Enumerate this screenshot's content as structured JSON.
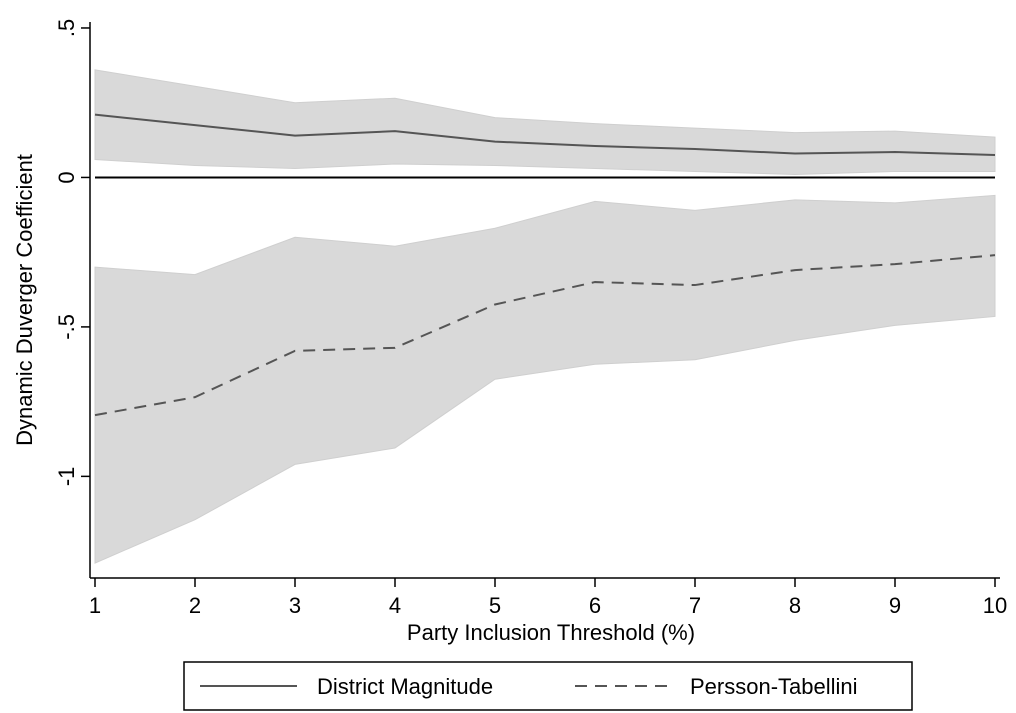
{
  "chart_data": {
    "type": "line",
    "title": "",
    "xlabel": "Party Inclusion Threshold (%)",
    "ylabel": "Dynamic Duverger Coefficient",
    "x": [
      1,
      2,
      3,
      4,
      5,
      6,
      7,
      8,
      9,
      10
    ],
    "x_ticks": [
      "1",
      "2",
      "3",
      "4",
      "5",
      "6",
      "7",
      "8",
      "9",
      "10"
    ],
    "y_ticks": [
      {
        "value": 0.5,
        "label": ".5"
      },
      {
        "value": 0,
        "label": "0"
      },
      {
        "value": -0.5,
        "label": "-.5"
      },
      {
        "value": -1,
        "label": "-1"
      }
    ],
    "xlim": [
      0.95,
      10.05
    ],
    "ylim": [
      -1.34,
      0.52
    ],
    "reference_line": 0,
    "grid": false,
    "legend_position": "bottom",
    "band_color": "#d9d9d9",
    "line_color": "#555555",
    "series": [
      {
        "name": "District Magnitude",
        "style": "solid",
        "values": [
          0.21,
          0.175,
          0.14,
          0.155,
          0.12,
          0.105,
          0.095,
          0.08,
          0.085,
          0.075
        ],
        "lower": [
          0.06,
          0.04,
          0.03,
          0.045,
          0.04,
          0.03,
          0.02,
          0.01,
          0.02,
          0.02
        ],
        "upper": [
          0.36,
          0.305,
          0.25,
          0.265,
          0.2,
          0.18,
          0.165,
          0.15,
          0.155,
          0.135
        ]
      },
      {
        "name": "Persson-Tabellini",
        "style": "dashed",
        "values": [
          -0.795,
          -0.735,
          -0.58,
          -0.57,
          -0.425,
          -0.35,
          -0.36,
          -0.31,
          -0.29,
          -0.26
        ],
        "lower": [
          -1.29,
          -1.145,
          -0.96,
          -0.905,
          -0.675,
          -0.625,
          -0.61,
          -0.545,
          -0.495,
          -0.465
        ],
        "upper": [
          -0.3,
          -0.325,
          -0.2,
          -0.23,
          -0.17,
          -0.08,
          -0.11,
          -0.075,
          -0.085,
          -0.06
        ]
      }
    ]
  }
}
